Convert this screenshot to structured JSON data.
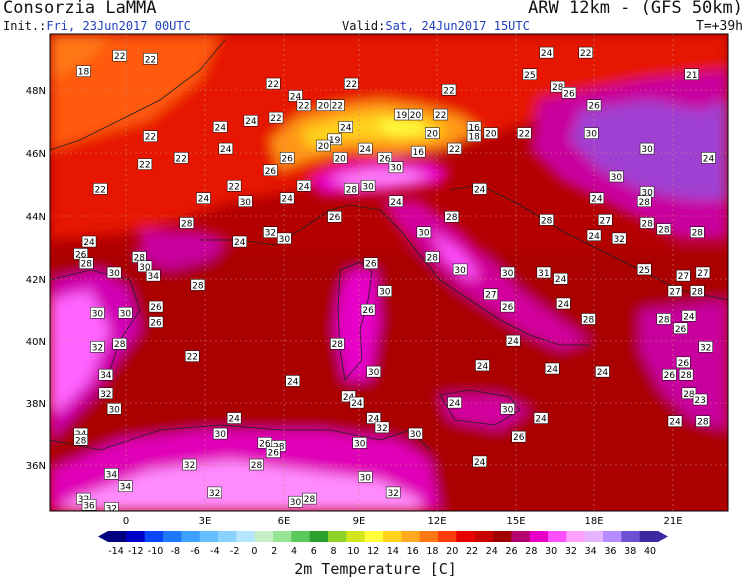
{
  "header": {
    "title": "Consorzia LaMMA",
    "model": "ARW 12km - (GFS 50km)",
    "init_label": "Init.:",
    "init_value": "Fri, 23Jun2017 00UTC",
    "valid_label": "Valid:",
    "valid_value": "Sat, 24Jun2017 15UTC",
    "timestep": "T=+39h"
  },
  "axes": {
    "lat_labels": [
      "48N",
      "46N",
      "44N",
      "42N",
      "40N",
      "38N",
      "36N"
    ],
    "lon_labels": [
      "0",
      "3E",
      "6E",
      "9E",
      "12E",
      "15E",
      "18E",
      "21E"
    ]
  },
  "colorbar": {
    "title": "2m Temperature [C]",
    "ticks": [
      "-14",
      "-12",
      "-10",
      "-8",
      "-6",
      "-4",
      "-2",
      "0",
      "2",
      "4",
      "6",
      "8",
      "10",
      "12",
      "14",
      "16",
      "18",
      "20",
      "22",
      "24",
      "26",
      "28",
      "30",
      "32",
      "34",
      "36",
      "38",
      "40"
    ],
    "colors": [
      "#000080",
      "#0000c8",
      "#0a46ff",
      "#1e78ff",
      "#3ca0ff",
      "#64beff",
      "#8cd2ff",
      "#b4e6ff",
      "#c8f0c8",
      "#96e696",
      "#5ac85a",
      "#2ca02c",
      "#8cd228",
      "#d2e61e",
      "#ffff3c",
      "#ffd21e",
      "#ffaa1e",
      "#ff7814",
      "#ff3c0a",
      "#e60000",
      "#c80000",
      "#a00000",
      "#b4006e",
      "#e600c8",
      "#ff50ff",
      "#ffa0ff",
      "#e6b4ff",
      "#b48cff",
      "#6e50d2",
      "#3c28a0"
    ]
  },
  "map_labels": [
    {
      "t": "22",
      "lon": 0.1,
      "lat": 49.2
    },
    {
      "t": "22",
      "lon": 1.2,
      "lat": 49.1
    },
    {
      "t": "18",
      "lon": -1.2,
      "lat": 48.7
    },
    {
      "t": "24",
      "lon": 15.4,
      "lat": 49.3
    },
    {
      "t": "22",
      "lon": 16.8,
      "lat": 49.3
    },
    {
      "t": "21",
      "lon": 20.6,
      "lat": 48.6
    },
    {
      "t": "25",
      "lon": 14.8,
      "lat": 48.6
    },
    {
      "t": "22",
      "lon": 5.6,
      "lat": 48.3
    },
    {
      "t": "22",
      "lon": 8.4,
      "lat": 48.3
    },
    {
      "t": "22",
      "lon": 11.9,
      "lat": 48.1
    },
    {
      "t": "28",
      "lon": 15.8,
      "lat": 48.2
    },
    {
      "t": "24",
      "lon": 6.4,
      "lat": 47.9
    },
    {
      "t": "26",
      "lon": 16.2,
      "lat": 48.0
    },
    {
      "t": "22",
      "lon": 6.7,
      "lat": 47.6
    },
    {
      "t": "20",
      "lon": 7.4,
      "lat": 47.6
    },
    {
      "t": "22",
      "lon": 7.9,
      "lat": 47.6
    },
    {
      "t": "26",
      "lon": 17.1,
      "lat": 47.6
    },
    {
      "t": "22",
      "lon": 5.7,
      "lat": 47.2
    },
    {
      "t": "19",
      "lon": 10.2,
      "lat": 47.3
    },
    {
      "t": "20",
      "lon": 10.7,
      "lat": 47.3
    },
    {
      "t": "22",
      "lon": 11.6,
      "lat": 47.3
    },
    {
      "t": "24",
      "lon": 3.7,
      "lat": 46.9
    },
    {
      "t": "24",
      "lon": 8.2,
      "lat": 46.9
    },
    {
      "t": "16",
      "lon": 12.8,
      "lat": 46.9
    },
    {
      "t": "18",
      "lon": 12.8,
      "lat": 46.6
    },
    {
      "t": "24",
      "lon": 4.8,
      "lat": 47.1
    },
    {
      "t": "22",
      "lon": 1.2,
      "lat": 46.6
    },
    {
      "t": "20",
      "lon": 11.3,
      "lat": 46.7
    },
    {
      "t": "20",
      "lon": 13.4,
      "lat": 46.7
    },
    {
      "t": "22",
      "lon": 14.6,
      "lat": 46.7
    },
    {
      "t": "30",
      "lon": 17.0,
      "lat": 46.7
    },
    {
      "t": "19",
      "lon": 7.8,
      "lat": 46.5
    },
    {
      "t": "24",
      "lon": 3.9,
      "lat": 46.2
    },
    {
      "t": "24",
      "lon": 8.9,
      "lat": 46.2
    },
    {
      "t": "20",
      "lon": 7.4,
      "lat": 46.3
    },
    {
      "t": "16",
      "lon": 10.8,
      "lat": 46.1
    },
    {
      "t": "22",
      "lon": 12.1,
      "lat": 46.2
    },
    {
      "t": "22",
      "lon": 2.3,
      "lat": 45.9
    },
    {
      "t": "26",
      "lon": 6.1,
      "lat": 45.9
    },
    {
      "t": "20",
      "lon": 8.0,
      "lat": 45.9
    },
    {
      "t": "26",
      "lon": 9.6,
      "lat": 45.9
    },
    {
      "t": "30",
      "lon": 19.0,
      "lat": 46.2
    },
    {
      "t": "24",
      "lon": 21.2,
      "lat": 45.9
    },
    {
      "t": "22",
      "lon": 1.0,
      "lat": 45.7
    },
    {
      "t": "26",
      "lon": 5.5,
      "lat": 45.5
    },
    {
      "t": "30",
      "lon": 10.0,
      "lat": 45.6
    },
    {
      "t": "22",
      "lon": -0.6,
      "lat": 44.9
    },
    {
      "t": "22",
      "lon": 4.2,
      "lat": 45.0
    },
    {
      "t": "24",
      "lon": 6.7,
      "lat": 45.0
    },
    {
      "t": "28",
      "lon": 8.4,
      "lat": 44.9
    },
    {
      "t": "30",
      "lon": 9.0,
      "lat": 45.0
    },
    {
      "t": "24",
      "lon": 13.0,
      "lat": 44.9
    },
    {
      "t": "30",
      "lon": 17.9,
      "lat": 45.3
    },
    {
      "t": "30",
      "lon": 19.0,
      "lat": 44.8
    },
    {
      "t": "24",
      "lon": 3.1,
      "lat": 44.6
    },
    {
      "t": "30",
      "lon": 4.6,
      "lat": 44.5
    },
    {
      "t": "24",
      "lon": 6.1,
      "lat": 44.6
    },
    {
      "t": "24",
      "lon": 10.0,
      "lat": 44.5
    },
    {
      "t": "24",
      "lon": 17.2,
      "lat": 44.6
    },
    {
      "t": "28",
      "lon": 18.9,
      "lat": 44.5
    },
    {
      "t": "26",
      "lon": 7.8,
      "lat": 44.0
    },
    {
      "t": "28",
      "lon": 2.5,
      "lat": 43.8
    },
    {
      "t": "32",
      "lon": 5.5,
      "lat": 43.5
    },
    {
      "t": "28",
      "lon": 12.0,
      "lat": 44.0
    },
    {
      "t": "28",
      "lon": 15.4,
      "lat": 43.9
    },
    {
      "t": "27",
      "lon": 17.5,
      "lat": 43.9
    },
    {
      "t": "28",
      "lon": 19.0,
      "lat": 43.8
    },
    {
      "t": "24",
      "lon": -1.0,
      "lat": 43.2
    },
    {
      "t": "24",
      "lon": 4.4,
      "lat": 43.2
    },
    {
      "t": "30",
      "lon": 6.0,
      "lat": 43.3
    },
    {
      "t": "30",
      "lon": 11.0,
      "lat": 43.5
    },
    {
      "t": "24",
      "lon": 17.1,
      "lat": 43.4
    },
    {
      "t": "32",
      "lon": 18.0,
      "lat": 43.3
    },
    {
      "t": "28",
      "lon": 19.6,
      "lat": 43.6
    },
    {
      "t": "28",
      "lon": 20.8,
      "lat": 43.5
    },
    {
      "t": "26",
      "lon": -1.3,
      "lat": 42.8
    },
    {
      "t": "28",
      "lon": -1.1,
      "lat": 42.5
    },
    {
      "t": "28",
      "lon": 0.8,
      "lat": 42.7
    },
    {
      "t": "30",
      "lon": 1.0,
      "lat": 42.4
    },
    {
      "t": "34",
      "lon": 1.3,
      "lat": 42.1
    },
    {
      "t": "30",
      "lon": -0.1,
      "lat": 42.2
    },
    {
      "t": "26",
      "lon": 9.1,
      "lat": 42.5
    },
    {
      "t": "30",
      "lon": 14.0,
      "lat": 42.2
    },
    {
      "t": "31",
      "lon": 15.3,
      "lat": 42.2
    },
    {
      "t": "24",
      "lon": 15.9,
      "lat": 42.0
    },
    {
      "t": "25",
      "lon": 18.9,
      "lat": 42.3
    },
    {
      "t": "27",
      "lon": 20.3,
      "lat": 42.1
    },
    {
      "t": "28",
      "lon": 2.9,
      "lat": 41.8
    },
    {
      "t": "28",
      "lon": 11.3,
      "lat": 42.7
    },
    {
      "t": "30",
      "lon": 12.3,
      "lat": 42.3
    },
    {
      "t": "27",
      "lon": 21.0,
      "lat": 42.2
    },
    {
      "t": "30",
      "lon": 9.6,
      "lat": 41.6
    },
    {
      "t": "27",
      "lon": 13.4,
      "lat": 41.5
    },
    {
      "t": "27",
      "lon": 20.0,
      "lat": 41.6
    },
    {
      "t": "28",
      "lon": 20.8,
      "lat": 41.6
    },
    {
      "t": "26",
      "lon": 1.4,
      "lat": 41.1
    },
    {
      "t": "30",
      "lon": -0.7,
      "lat": 40.9
    },
    {
      "t": "30",
      "lon": 0.3,
      "lat": 40.9
    },
    {
      "t": "26",
      "lon": 9.0,
      "lat": 41.0
    },
    {
      "t": "26",
      "lon": 14.0,
      "lat": 41.1
    },
    {
      "t": "24",
      "lon": 16.0,
      "lat": 41.2
    },
    {
      "t": "26",
      "lon": 1.4,
      "lat": 40.6
    },
    {
      "t": "28",
      "lon": 16.9,
      "lat": 40.7
    },
    {
      "t": "28",
      "lon": 19.6,
      "lat": 40.7
    },
    {
      "t": "26",
      "lon": 20.2,
      "lat": 40.4
    },
    {
      "t": "24",
      "lon": 20.5,
      "lat": 40.8
    },
    {
      "t": "32",
      "lon": -0.7,
      "lat": 39.8
    },
    {
      "t": "28",
      "lon": 0.1,
      "lat": 39.9
    },
    {
      "t": "28",
      "lon": 7.9,
      "lat": 39.9
    },
    {
      "t": "24",
      "lon": 14.2,
      "lat": 40.0
    },
    {
      "t": "32",
      "lon": 21.1,
      "lat": 39.8
    },
    {
      "t": "26",
      "lon": 20.3,
      "lat": 39.3
    },
    {
      "t": "22",
      "lon": 2.7,
      "lat": 39.5
    },
    {
      "t": "34",
      "lon": -0.4,
      "lat": 38.9
    },
    {
      "t": "30",
      "lon": 9.2,
      "lat": 39.0
    },
    {
      "t": "24",
      "lon": 13.1,
      "lat": 39.2
    },
    {
      "t": "24",
      "lon": 15.6,
      "lat": 39.1
    },
    {
      "t": "24",
      "lon": 17.4,
      "lat": 39.0
    },
    {
      "t": "28",
      "lon": 20.4,
      "lat": 38.9
    },
    {
      "t": "24",
      "lon": 6.3,
      "lat": 38.7
    },
    {
      "t": "26",
      "lon": 19.8,
      "lat": 38.9
    },
    {
      "t": "32",
      "lon": -0.4,
      "lat": 38.3
    },
    {
      "t": "24",
      "lon": 8.3,
      "lat": 38.2
    },
    {
      "t": "24",
      "lon": 8.6,
      "lat": 38.0
    },
    {
      "t": "28",
      "lon": 20.5,
      "lat": 38.3
    },
    {
      "t": "23",
      "lon": 20.9,
      "lat": 38.1
    },
    {
      "t": "30",
      "lon": -0.1,
      "lat": 37.8
    },
    {
      "t": "24",
      "lon": 12.1,
      "lat": 38.0
    },
    {
      "t": "30",
      "lon": 14.0,
      "lat": 37.8
    },
    {
      "t": "24",
      "lon": 4.2,
      "lat": 37.5
    },
    {
      "t": "24",
      "lon": 9.2,
      "lat": 37.5
    },
    {
      "t": "24",
      "lon": 15.2,
      "lat": 37.5
    },
    {
      "t": "32",
      "lon": 9.5,
      "lat": 37.2
    },
    {
      "t": "24",
      "lon": 20.0,
      "lat": 37.4
    },
    {
      "t": "28",
      "lon": 21.0,
      "lat": 37.4
    },
    {
      "t": "24",
      "lon": -1.3,
      "lat": 37.0
    },
    {
      "t": "30",
      "lon": 3.7,
      "lat": 37.0
    },
    {
      "t": "30",
      "lon": 10.7,
      "lat": 37.0
    },
    {
      "t": "26",
      "lon": 14.4,
      "lat": 36.9
    },
    {
      "t": "26",
      "lon": 5.3,
      "lat": 36.7
    },
    {
      "t": "28",
      "lon": 5.8,
      "lat": 36.6
    },
    {
      "t": "28",
      "lon": -1.3,
      "lat": 36.8
    },
    {
      "t": "30",
      "lon": 8.7,
      "lat": 36.7
    },
    {
      "t": "26",
      "lon": 5.6,
      "lat": 36.4
    },
    {
      "t": "24",
      "lon": 13.0,
      "lat": 36.1
    },
    {
      "t": "32",
      "lon": 2.6,
      "lat": 36.0
    },
    {
      "t": "28",
      "lon": 5.0,
      "lat": 36.0
    },
    {
      "t": "30",
      "lon": 8.9,
      "lat": 35.6
    },
    {
      "t": "34",
      "lon": -0.2,
      "lat": 35.7
    },
    {
      "t": "34",
      "lon": 0.3,
      "lat": 35.3
    },
    {
      "t": "32",
      "lon": 3.5,
      "lat": 35.1
    },
    {
      "t": "32",
      "lon": 9.9,
      "lat": 35.1
    },
    {
      "t": "28",
      "lon": 6.9,
      "lat": 34.9
    },
    {
      "t": "30",
      "lon": 6.4,
      "lat": 34.8
    },
    {
      "t": "32",
      "lon": -1.2,
      "lat": 34.9
    },
    {
      "t": "36",
      "lon": -1.0,
      "lat": 34.7
    },
    {
      "t": "32",
      "lon": -0.2,
      "lat": 34.6
    }
  ]
}
